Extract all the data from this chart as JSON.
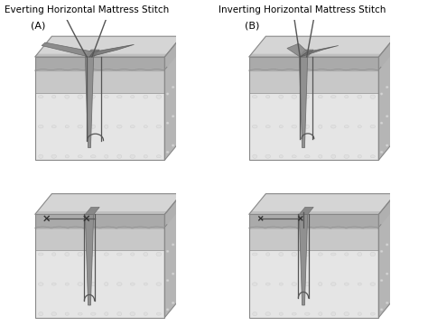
{
  "title_left": "Everting Horizontal Mattress Stitch",
  "title_right": "Inverting Horizontal Mattress Stitch",
  "label_A": "(A)",
  "label_B": "(B)",
  "bg_color": "#ffffff",
  "title_fontsize": 7.5,
  "label_fontsize": 8,
  "suture_color": "#555555",
  "col_colors": {
    "epidermis_top": "#c0c0c0",
    "epidermis_front": "#aaaaaa",
    "dermis_top": "#d5d5d5",
    "dermis_front": "#c8c8c8",
    "fat_front": "#e5e5e5",
    "fat_top": "#d8d8d8",
    "right_face": "#b5b5b5",
    "wound": "#909090",
    "flap_dark": "#787878",
    "flap_mid": "#909090",
    "outline": "#888888"
  }
}
